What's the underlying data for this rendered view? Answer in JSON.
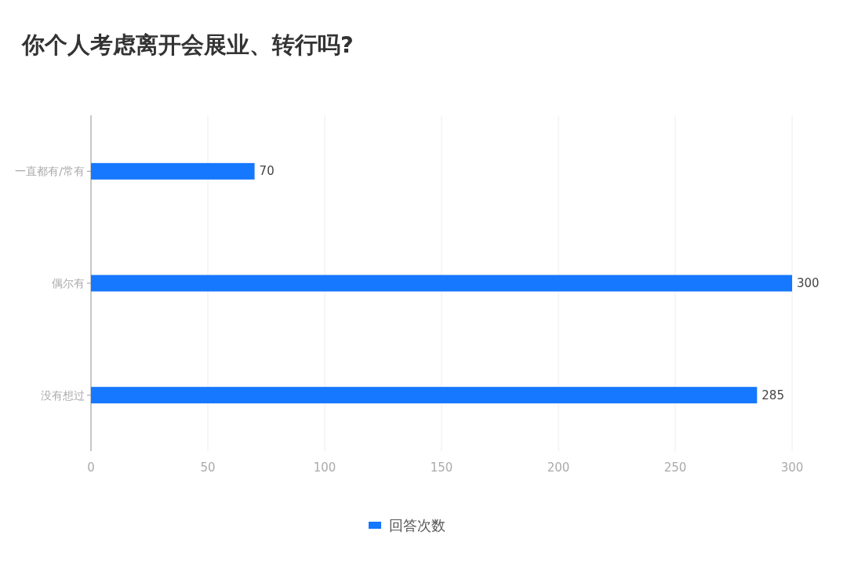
{
  "chart_data": {
    "type": "bar",
    "orientation": "horizontal",
    "title": "你个人考虑离开会展业、转行吗?",
    "categories": [
      "一直都有/常有",
      "偶尔有",
      "没有想过"
    ],
    "series": [
      {
        "name": "回答次数",
        "color": "#1677ff",
        "values": [
          70,
          300,
          285
        ]
      }
    ],
    "xlim": [
      0,
      300
    ],
    "xticks": [
      0,
      50,
      100,
      150,
      200,
      250,
      300
    ],
    "grid": "x",
    "legend": "bottom",
    "data_labels": true
  }
}
